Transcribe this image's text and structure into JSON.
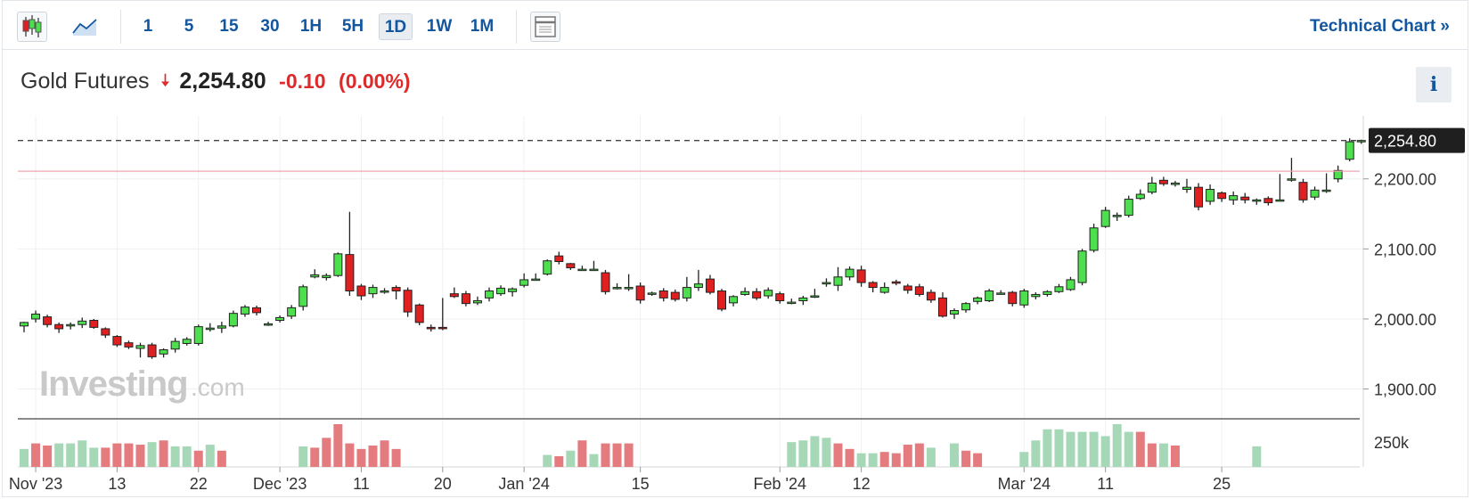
{
  "toolbar": {
    "candles_icon": "candlestick-icon",
    "area_icon": "area-chart-icon",
    "table_icon": "table-icon",
    "intervals": [
      "1",
      "5",
      "15",
      "30",
      "1H",
      "5H",
      "1D",
      "1W",
      "1M"
    ],
    "active_interval": "1D",
    "technical_chart_label": "Technical Chart »"
  },
  "header": {
    "instrument": "Gold Futures",
    "direction_icon": "down-arrow-icon",
    "price": "2,254.80",
    "change": "-0.10",
    "change_pct": "(0.00%)",
    "info_label": "i"
  },
  "colors": {
    "up": "#4ddf4d",
    "down": "#e02020",
    "vol_up": "#a6d8b8",
    "vol_down": "#e37b7f",
    "link": "#1256a0"
  },
  "watermark": {
    "brand": "Investing",
    ".com": ".com"
  },
  "chart_data": {
    "type": "candlestick",
    "y_axis": {
      "min": 1860,
      "max": 2290,
      "ticks": [
        1900,
        2000,
        2100,
        2200
      ],
      "tick_labels": [
        "1,900.00",
        "2,000.00",
        "2,100.00",
        "2,200.00"
      ]
    },
    "volume_axis": {
      "tick_labels": [
        "250k"
      ]
    },
    "last_price": {
      "value": 2254.8,
      "label": "2,254.80"
    },
    "reference_line": 2211,
    "x_labels": [
      {
        "label": "Nov '23",
        "index": 1
      },
      {
        "label": "13",
        "index": 8
      },
      {
        "label": "22",
        "index": 15
      },
      {
        "label": "Dec '23",
        "index": 22
      },
      {
        "label": "11",
        "index": 29
      },
      {
        "label": "20",
        "index": 36
      },
      {
        "label": "Jan '24",
        "index": 43
      },
      {
        "label": "15",
        "index": 53
      },
      {
        "label": "Feb '24",
        "index": 65
      },
      {
        "label": "12",
        "index": 72
      },
      {
        "label": "Mar '24",
        "index": 86
      },
      {
        "label": "11",
        "index": 93
      },
      {
        "label": "25",
        "index": 103
      }
    ],
    "candles": [
      [
        1990,
        1995,
        1981,
        1996
      ],
      [
        2000,
        2007,
        1995,
        2012
      ],
      [
        2003,
        1992,
        1988,
        2006
      ],
      [
        1992,
        1986,
        1980,
        1995
      ],
      [
        1990,
        1992,
        1985,
        1995
      ],
      [
        1992,
        1997,
        1987,
        2002
      ],
      [
        1998,
        1988,
        1986,
        2000
      ],
      [
        1986,
        1977,
        1973,
        1988
      ],
      [
        1975,
        1963,
        1960,
        1977
      ],
      [
        1966,
        1960,
        1957,
        1969
      ],
      [
        1958,
        1962,
        1945,
        1966
      ],
      [
        1963,
        1946,
        1943,
        1966
      ],
      [
        1950,
        1956,
        1945,
        1958
      ],
      [
        1957,
        1968,
        1952,
        1973
      ],
      [
        1965,
        1971,
        1962,
        1974
      ],
      [
        1965,
        1989,
        1962,
        1992
      ],
      [
        1985,
        1987,
        1982,
        1994
      ],
      [
        1987,
        1990,
        1980,
        1996
      ],
      [
        1990,
        2008,
        1988,
        2012
      ],
      [
        2007,
        2017,
        2003,
        2020
      ],
      [
        2016,
        2009,
        2005,
        2019
      ],
      [
        1993,
        1993,
        1990,
        1996
      ],
      [
        1998,
        2002,
        1995,
        2005
      ],
      [
        2004,
        2016,
        2000,
        2020
      ],
      [
        2018,
        2046,
        2012,
        2049
      ],
      [
        2060,
        2063,
        2058,
        2071
      ],
      [
        2059,
        2062,
        2055,
        2065
      ],
      [
        2062,
        2093,
        2060,
        2095
      ],
      [
        2092,
        2040,
        2033,
        2153
      ],
      [
        2047,
        2033,
        2027,
        2050
      ],
      [
        2036,
        2045,
        2030,
        2049
      ],
      [
        2040,
        2040,
        2036,
        2044
      ],
      [
        2045,
        2040,
        2028,
        2048
      ],
      [
        2041,
        2010,
        2003,
        2045
      ],
      [
        2020,
        1995,
        1991,
        2022
      ],
      [
        1988,
        1986,
        1982,
        1992
      ],
      [
        1988,
        1987,
        1984,
        2030
      ],
      [
        2036,
        2032,
        2030,
        2045
      ],
      [
        2036,
        2022,
        2018,
        2040
      ],
      [
        2023,
        2026,
        2020,
        2032
      ],
      [
        2030,
        2040,
        2025,
        2045
      ],
      [
        2036,
        2044,
        2033,
        2048
      ],
      [
        2039,
        2043,
        2032,
        2045
      ],
      [
        2048,
        2056,
        2045,
        2065
      ],
      [
        2057,
        2057,
        2055,
        2065
      ],
      [
        2064,
        2083,
        2062,
        2085
      ],
      [
        2090,
        2082,
        2078,
        2096
      ],
      [
        2079,
        2073,
        2070,
        2080
      ],
      [
        2071,
        2071,
        2069,
        2076
      ],
      [
        2071,
        2071,
        2069,
        2083
      ],
      [
        2066,
        2039,
        2035,
        2070
      ],
      [
        2045,
        2045,
        2042,
        2051
      ],
      [
        2045,
        2045,
        2040,
        2064
      ],
      [
        2047,
        2027,
        2022,
        2052
      ],
      [
        2037,
        2037,
        2033,
        2039
      ],
      [
        2040,
        2030,
        2025,
        2044
      ],
      [
        2038,
        2028,
        2025,
        2042
      ],
      [
        2030,
        2045,
        2025,
        2060
      ],
      [
        2045,
        2050,
        2040,
        2070
      ],
      [
        2057,
        2038,
        2035,
        2063
      ],
      [
        2040,
        2014,
        2011,
        2043
      ],
      [
        2023,
        2032,
        2018,
        2034
      ],
      [
        2035,
        2039,
        2033,
        2045
      ],
      [
        2039,
        2030,
        2027,
        2044
      ],
      [
        2033,
        2041,
        2029,
        2045
      ],
      [
        2036,
        2026,
        2022,
        2039
      ],
      [
        2024,
        2024,
        2021,
        2029
      ],
      [
        2026,
        2030,
        2020,
        2033
      ],
      [
        2033,
        2033,
        2030,
        2043
      ],
      [
        2050,
        2052,
        2046,
        2058
      ],
      [
        2048,
        2060,
        2040,
        2074
      ],
      [
        2060,
        2071,
        2055,
        2075
      ],
      [
        2070,
        2052,
        2046,
        2076
      ],
      [
        2052,
        2045,
        2038,
        2054
      ],
      [
        2038,
        2045,
        2036,
        2052
      ],
      [
        2053,
        2051,
        2048,
        2056
      ],
      [
        2047,
        2041,
        2036,
        2050
      ],
      [
        2046,
        2035,
        2032,
        2050
      ],
      [
        2038,
        2027,
        2023,
        2042
      ],
      [
        2030,
        2004,
        2002,
        2038
      ],
      [
        2007,
        2012,
        2000,
        2015
      ],
      [
        2013,
        2022,
        2009,
        2024
      ],
      [
        2025,
        2030,
        2021,
        2032
      ],
      [
        2026,
        2040,
        2024,
        2043
      ],
      [
        2037,
        2037,
        2035,
        2041
      ],
      [
        2038,
        2022,
        2018,
        2040
      ],
      [
        2020,
        2040,
        2016,
        2043
      ],
      [
        2032,
        2035,
        2028,
        2038
      ],
      [
        2035,
        2039,
        2032,
        2041
      ],
      [
        2039,
        2046,
        2037,
        2050
      ],
      [
        2042,
        2056,
        2040,
        2060
      ],
      [
        2052,
        2097,
        2048,
        2100
      ],
      [
        2098,
        2130,
        2095,
        2136
      ],
      [
        2132,
        2155,
        2130,
        2160
      ],
      [
        2148,
        2148,
        2140,
        2152
      ],
      [
        2148,
        2171,
        2145,
        2176
      ],
      [
        2172,
        2178,
        2170,
        2185
      ],
      [
        2181,
        2194,
        2178,
        2203
      ],
      [
        2198,
        2193,
        2190,
        2203
      ],
      [
        2192,
        2194,
        2189,
        2197
      ],
      [
        2185,
        2188,
        2180,
        2200
      ],
      [
        2188,
        2160,
        2155,
        2194
      ],
      [
        2168,
        2185,
        2163,
        2192
      ],
      [
        2180,
        2172,
        2167,
        2182
      ],
      [
        2170,
        2176,
        2163,
        2182
      ],
      [
        2174,
        2170,
        2165,
        2180
      ],
      [
        2169,
        2170,
        2163,
        2172
      ],
      [
        2172,
        2166,
        2162,
        2175
      ],
      [
        2170,
        2170,
        2168,
        2207
      ],
      [
        2200,
        2200,
        2196,
        2230
      ],
      [
        2195,
        2170,
        2166,
        2200
      ],
      [
        2174,
        2184,
        2170,
        2189
      ],
      [
        2183,
        2184,
        2180,
        2208
      ],
      [
        2200,
        2212,
        2195,
        2219
      ],
      [
        2228,
        2253,
        2225,
        2258
      ],
      [
        2253,
        2254.8,
        2250,
        2256
      ]
    ],
    "volume": [
      [
        0,
        "up",
        0.42
      ],
      [
        1,
        "down",
        0.55
      ],
      [
        2,
        "down",
        0.5
      ],
      [
        3,
        "up",
        0.55
      ],
      [
        4,
        "up",
        0.55
      ],
      [
        5,
        "up",
        0.62
      ],
      [
        6,
        "up",
        0.45
      ],
      [
        7,
        "down",
        0.45
      ],
      [
        8,
        "down",
        0.55
      ],
      [
        9,
        "down",
        0.55
      ],
      [
        10,
        "down",
        0.52
      ],
      [
        11,
        "up",
        0.58
      ],
      [
        12,
        "down",
        0.62
      ],
      [
        13,
        "up",
        0.48
      ],
      [
        14,
        "up",
        0.48
      ],
      [
        15,
        "down",
        0.38
      ],
      [
        16,
        "up",
        0.52
      ],
      [
        17,
        "down",
        0.38
      ],
      [
        24,
        "up",
        0.48
      ],
      [
        25,
        "down",
        0.45
      ],
      [
        26,
        "down",
        0.68
      ],
      [
        27,
        "down",
        1.0
      ],
      [
        28,
        "down",
        0.55
      ],
      [
        29,
        "down",
        0.42
      ],
      [
        30,
        "down",
        0.5
      ],
      [
        31,
        "down",
        0.62
      ],
      [
        32,
        "down",
        0.42
      ],
      [
        45,
        "up",
        0.28
      ],
      [
        46,
        "down",
        0.25
      ],
      [
        47,
        "up",
        0.38
      ],
      [
        48,
        "down",
        0.62
      ],
      [
        49,
        "up",
        0.3
      ],
      [
        50,
        "down",
        0.55
      ],
      [
        51,
        "down",
        0.55
      ],
      [
        52,
        "down",
        0.55
      ],
      [
        66,
        "up",
        0.58
      ],
      [
        67,
        "up",
        0.62
      ],
      [
        68,
        "up",
        0.72
      ],
      [
        69,
        "up",
        0.68
      ],
      [
        70,
        "down",
        0.55
      ],
      [
        71,
        "down",
        0.42
      ],
      [
        72,
        "up",
        0.32
      ],
      [
        73,
        "up",
        0.32
      ],
      [
        74,
        "down",
        0.35
      ],
      [
        75,
        "down",
        0.32
      ],
      [
        76,
        "down",
        0.52
      ],
      [
        77,
        "down",
        0.55
      ],
      [
        78,
        "up",
        0.45
      ],
      [
        80,
        "up",
        0.55
      ],
      [
        81,
        "down",
        0.38
      ],
      [
        82,
        "down",
        0.32
      ],
      [
        86,
        "up",
        0.35
      ],
      [
        87,
        "up",
        0.62
      ],
      [
        88,
        "up",
        0.88
      ],
      [
        89,
        "up",
        0.88
      ],
      [
        90,
        "up",
        0.82
      ],
      [
        91,
        "up",
        0.82
      ],
      [
        92,
        "up",
        0.82
      ],
      [
        93,
        "up",
        0.72
      ],
      [
        94,
        "up",
        1.0
      ],
      [
        95,
        "up",
        0.82
      ],
      [
        96,
        "down",
        0.82
      ],
      [
        97,
        "down",
        0.55
      ],
      [
        98,
        "up",
        0.55
      ],
      [
        99,
        "down",
        0.5
      ],
      [
        106,
        "up",
        0.48
      ]
    ]
  }
}
